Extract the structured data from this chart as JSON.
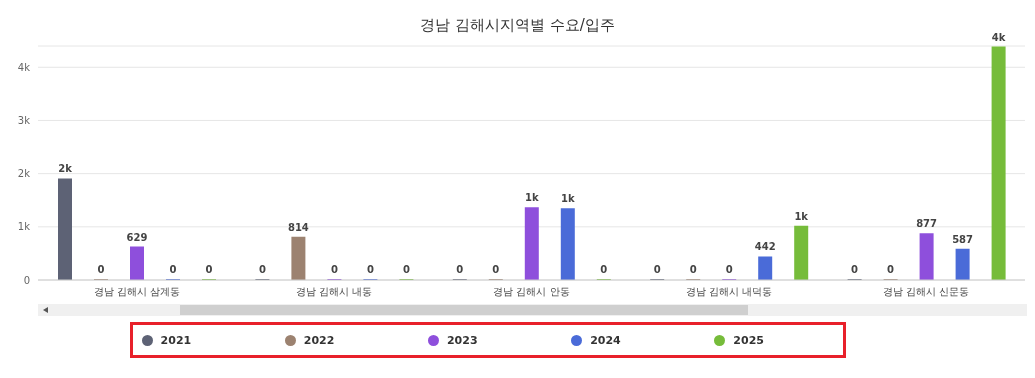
{
  "chart_data": {
    "type": "bar",
    "title": "경남 김해시지역별 수요/입주",
    "categories": [
      "경남 김해시 삼계동",
      "경남 김해시 내동",
      "경남 김해시 안동",
      "경남 김해시 내덕동",
      "경남 김해시 신문동"
    ],
    "series": [
      {
        "name": "2021",
        "color": "#5d6275",
        "values": [
          1910,
          0,
          0,
          0,
          0
        ],
        "value_labels": [
          "2k",
          "0",
          "0",
          "0",
          "0"
        ]
      },
      {
        "name": "2022",
        "color": "#9c8270",
        "values": [
          0,
          814,
          0,
          0,
          0
        ],
        "value_labels": [
          "0",
          "814",
          "0",
          "0",
          "0"
        ]
      },
      {
        "name": "2023",
        "color": "#8e4fdc",
        "values": [
          629,
          0,
          1370,
          0,
          877
        ],
        "value_labels": [
          "629",
          "0",
          "1k",
          "0",
          "877"
        ]
      },
      {
        "name": "2024",
        "color": "#4a6bd8",
        "values": [
          0,
          0,
          1350,
          442,
          587
        ],
        "value_labels": [
          "0",
          "0",
          "1k",
          "442",
          "587"
        ]
      },
      {
        "name": "2025",
        "color": "#76bc3a",
        "values": [
          0,
          0,
          0,
          1020,
          4390
        ],
        "value_labels": [
          "0",
          "0",
          "0",
          "1k",
          "4k"
        ]
      }
    ],
    "ylim": [
      0,
      4400
    ],
    "yticks": [
      0,
      {
        "value": 1000,
        "label": "1k"
      },
      {
        "value": 2000,
        "label": "2k"
      },
      {
        "value": 3000,
        "label": "3k"
      },
      {
        "value": 4000,
        "label": "4k"
      }
    ],
    "grid": "y",
    "legend": "bottom"
  }
}
